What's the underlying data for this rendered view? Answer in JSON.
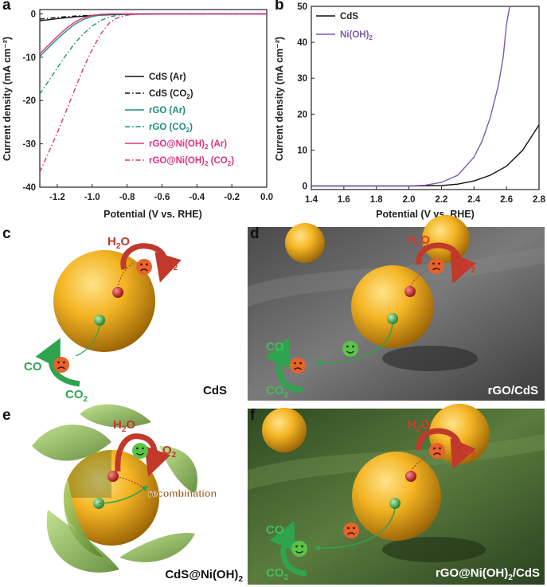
{
  "panels": {
    "a": "a",
    "b": "b",
    "c": "c",
    "d": "d",
    "e": "e",
    "f": "f"
  },
  "chart_data": [
    {
      "type": "line",
      "panel": "a",
      "xlabel": "Potential (V vs. RHE)",
      "ylabel": "Current density (mA cm⁻²)",
      "xlim": [
        -1.3,
        0.0
      ],
      "ylim": [
        -40,
        1
      ],
      "xticks": [
        -1.2,
        -1.0,
        -0.8,
        -0.6,
        -0.4,
        -0.2,
        0.0
      ],
      "xtick_labels": [
        "-1.2",
        "-1.0",
        "-0.8",
        "-0.6",
        "-0.4",
        "-0.2",
        "0.0"
      ],
      "yticks": [
        0,
        -10,
        -20,
        -30,
        -40
      ],
      "ytick_labels": [
        "0",
        "-10",
        "-20",
        "-30",
        "-40"
      ],
      "legend_position": "right",
      "series": [
        {
          "name": "CdS (Ar)",
          "legend_parts": [
            "CdS (Ar)"
          ],
          "color": "#111111",
          "dash": "solid",
          "points": [
            [
              -1.3,
              -1.6
            ],
            [
              -1.2,
              -1.1
            ],
            [
              -1.1,
              -0.7
            ],
            [
              -1.0,
              -0.4
            ],
            [
              -0.9,
              -0.2
            ],
            [
              -0.8,
              -0.1
            ],
            [
              -0.6,
              0
            ],
            [
              -0.4,
              0
            ],
            [
              -0.2,
              0
            ],
            [
              0.0,
              0
            ]
          ]
        },
        {
          "name": "CdS (CO2)",
          "legend_parts": [
            "CdS (CO",
            "2",
            ")"
          ],
          "color": "#111111",
          "dash": "dashdot",
          "points": [
            [
              -1.3,
              -1.2
            ],
            [
              -1.2,
              -0.8
            ],
            [
              -1.1,
              -0.5
            ],
            [
              -1.0,
              -0.3
            ],
            [
              -0.9,
              -0.15
            ],
            [
              -0.8,
              -0.05
            ],
            [
              -0.6,
              0
            ],
            [
              -0.4,
              0
            ],
            [
              -0.2,
              0
            ],
            [
              0.0,
              0
            ]
          ]
        },
        {
          "name": "rGO (Ar)",
          "legend_parts": [
            "rGO (Ar)"
          ],
          "color": "#1f8f7a",
          "dash": "solid",
          "points": [
            [
              -1.3,
              -9.8
            ],
            [
              -1.25,
              -7.8
            ],
            [
              -1.2,
              -5.8
            ],
            [
              -1.15,
              -4.0
            ],
            [
              -1.1,
              -2.4
            ],
            [
              -1.05,
              -1.3
            ],
            [
              -1.0,
              -0.6
            ],
            [
              -0.95,
              -0.25
            ],
            [
              -0.9,
              -0.1
            ],
            [
              -0.8,
              0
            ],
            [
              -0.6,
              0
            ],
            [
              0.0,
              0
            ]
          ]
        },
        {
          "name": "rGO (CO2)",
          "legend_parts": [
            "rGO (CO",
            "2",
            ")"
          ],
          "color": "#1f8f7a",
          "dash": "dashdot",
          "points": [
            [
              -1.3,
              -18.5
            ],
            [
              -1.25,
              -15.5
            ],
            [
              -1.2,
              -12.5
            ],
            [
              -1.15,
              -9.5
            ],
            [
              -1.1,
              -6.8
            ],
            [
              -1.05,
              -4.6
            ],
            [
              -1.0,
              -2.8
            ],
            [
              -0.95,
              -1.5
            ],
            [
              -0.9,
              -0.7
            ],
            [
              -0.85,
              -0.3
            ],
            [
              -0.8,
              -0.1
            ],
            [
              -0.7,
              0
            ],
            [
              0.0,
              0
            ]
          ]
        },
        {
          "name": "rGO@Ni(OH)2 (Ar)",
          "legend_parts": [
            "rGO@Ni(OH)",
            "2",
            " (Ar)"
          ],
          "color": "#e0307f",
          "dash": "solid",
          "points": [
            [
              -1.3,
              -9.2
            ],
            [
              -1.25,
              -7.2
            ],
            [
              -1.2,
              -5.2
            ],
            [
              -1.15,
              -3.4
            ],
            [
              -1.1,
              -1.9
            ],
            [
              -1.05,
              -0.9
            ],
            [
              -1.0,
              -0.35
            ],
            [
              -0.95,
              -0.1
            ],
            [
              -0.9,
              0
            ],
            [
              -0.6,
              0
            ],
            [
              0.0,
              0
            ]
          ]
        },
        {
          "name": "rGO@Ni(OH)2 (CO2)",
          "legend_parts": [
            "rGO@Ni(OH)",
            "2",
            " (CO",
            "2",
            ")"
          ],
          "color": "#e0307f",
          "dash": "dashdot",
          "points": [
            [
              -1.3,
              -36.5
            ],
            [
              -1.25,
              -32
            ],
            [
              -1.2,
              -27.5
            ],
            [
              -1.15,
              -22.5
            ],
            [
              -1.1,
              -17.5
            ],
            [
              -1.05,
              -12.5
            ],
            [
              -1.0,
              -8.2
            ],
            [
              -0.95,
              -4.6
            ],
            [
              -0.9,
              -2.0
            ],
            [
              -0.85,
              -0.8
            ],
            [
              -0.8,
              -0.3
            ],
            [
              -0.75,
              -0.1
            ],
            [
              -0.7,
              0
            ],
            [
              0.0,
              0
            ]
          ]
        }
      ]
    },
    {
      "type": "line",
      "panel": "b",
      "xlabel": "Potential (V vs. RHE)",
      "ylabel": "Current density (mA cm⁻²)",
      "xlim": [
        1.4,
        2.8
      ],
      "ylim": [
        -1,
        50
      ],
      "xticks": [
        1.4,
        1.6,
        1.8,
        2.0,
        2.2,
        2.4,
        2.6,
        2.8
      ],
      "xtick_labels": [
        "1.4",
        "1.6",
        "1.8",
        "2.0",
        "2.2",
        "2.4",
        "2.6",
        "2.8"
      ],
      "yticks": [
        0,
        10,
        20,
        30,
        40,
        50
      ],
      "ytick_labels": [
        "0",
        "10",
        "20",
        "30",
        "40",
        "50"
      ],
      "legend_position": "top-left",
      "series": [
        {
          "name": "CdS",
          "legend_parts": [
            "CdS"
          ],
          "color": "#111111",
          "dash": "solid",
          "points": [
            [
              1.4,
              0
            ],
            [
              2.0,
              0
            ],
            [
              2.2,
              0.1
            ],
            [
              2.3,
              0.5
            ],
            [
              2.4,
              1.4
            ],
            [
              2.5,
              3.0
            ],
            [
              2.6,
              5.5
            ],
            [
              2.7,
              10.0
            ],
            [
              2.75,
              13.5
            ],
            [
              2.8,
              17.0
            ]
          ]
        },
        {
          "name": "Ni(OH)2",
          "legend_parts": [
            "Ni(OH)",
            "2"
          ],
          "color": "#7a5bb0",
          "dash": "solid",
          "points": [
            [
              1.4,
              0
            ],
            [
              2.0,
              0
            ],
            [
              2.1,
              0.2
            ],
            [
              2.2,
              1.0
            ],
            [
              2.3,
              3.0
            ],
            [
              2.4,
              8.0
            ],
            [
              2.45,
              12.5
            ],
            [
              2.5,
              19.0
            ],
            [
              2.55,
              28.0
            ],
            [
              2.58,
              36.0
            ],
            [
              2.6,
              45.0
            ],
            [
              2.62,
              50.0
            ]
          ]
        }
      ]
    }
  ],
  "scenes": {
    "c": {
      "h2o": [
        "H",
        "2",
        "O"
      ],
      "o2": [
        "O",
        "2"
      ],
      "co": "CO",
      "co2": [
        "CO",
        "2"
      ],
      "caption": "CdS"
    },
    "d": {
      "h2o": [
        "H",
        "2",
        "O"
      ],
      "o2": [
        "O",
        "2"
      ],
      "co": "CO",
      "co2": [
        "CO",
        "2"
      ],
      "caption": "rGO/CdS"
    },
    "e": {
      "h2o": [
        "H",
        "2",
        "O"
      ],
      "o2": [
        "O",
        "2"
      ],
      "recombination": "recombination",
      "caption": [
        "CdS@Ni(OH)",
        "2"
      ]
    },
    "f": {
      "h2o": [
        "H",
        "2",
        "O"
      ],
      "o2": [
        "O",
        "2"
      ],
      "co": "CO",
      "co2": [
        "CO",
        "2"
      ],
      "caption": [
        "rGO@Ni(OH)",
        "2",
        "/CdS"
      ]
    }
  },
  "colors": {
    "sphere": "#f2b21f",
    "hole": "#c81e1e",
    "electron": "#3aa94a",
    "arrow_red": "#c0392b",
    "arrow_green": "#2ea44f",
    "face": "#e8622c",
    "face_happy": "#5cc24a"
  },
  "icons": [
    "sad-face-icon",
    "happy-face-icon",
    "curved-arrow-icon"
  ]
}
